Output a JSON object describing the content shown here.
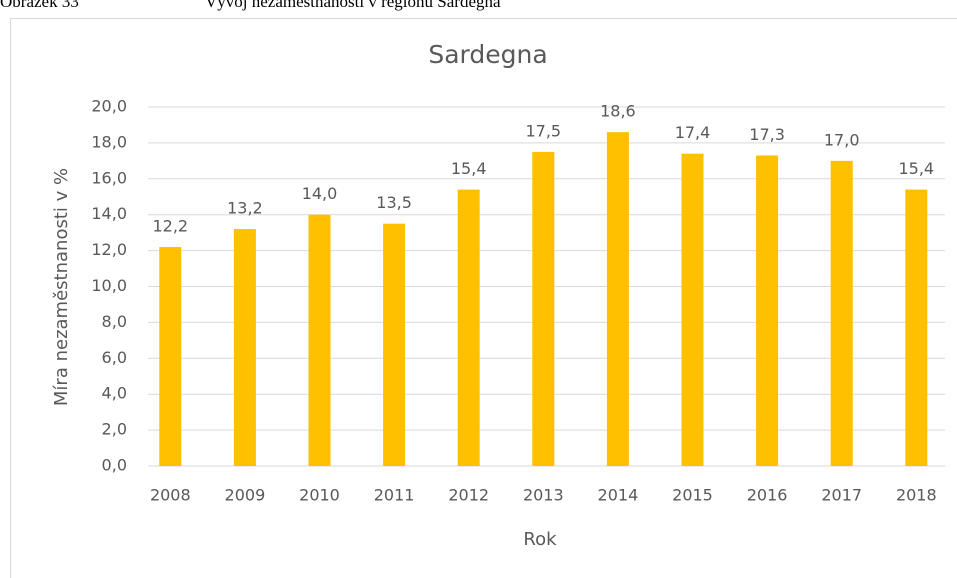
{
  "caption": {
    "label": "Obrázek 33",
    "text": "Vývoj nezaměstnanosti v regionu Sardegna"
  },
  "chart_data": {
    "type": "bar",
    "title": "Sardegna",
    "x_label": "Rok",
    "y_label": "Míra nezaměstnanosti v %",
    "categories": [
      "2008",
      "2009",
      "2010",
      "2011",
      "2012",
      "2013",
      "2014",
      "2015",
      "2016",
      "2017",
      "2018"
    ],
    "values": [
      12.2,
      13.2,
      14.0,
      13.5,
      15.4,
      17.5,
      18.6,
      17.4,
      17.3,
      17.0,
      15.4
    ],
    "value_labels": [
      "12,2",
      "13,2",
      "14,0",
      "13,5",
      "15,4",
      "17,5",
      "18,6",
      "17,4",
      "17,3",
      "17,0",
      "15,4"
    ],
    "color": "#ffc000",
    "ylim": [
      0,
      20
    ],
    "yticks": [
      {
        "value": 0,
        "label": "0,0"
      },
      {
        "value": 2,
        "label": "2,0"
      },
      {
        "value": 4,
        "label": "4,0"
      },
      {
        "value": 6,
        "label": "6,0"
      },
      {
        "value": 8,
        "label": "8,0"
      },
      {
        "value": 10,
        "label": "10,0"
      },
      {
        "value": 12,
        "label": "12,0"
      },
      {
        "value": 14,
        "label": "14,0"
      },
      {
        "value": 16,
        "label": "16,0"
      },
      {
        "value": 18,
        "label": "18,0"
      },
      {
        "value": 20,
        "label": "20,0"
      }
    ],
    "grid": true
  }
}
